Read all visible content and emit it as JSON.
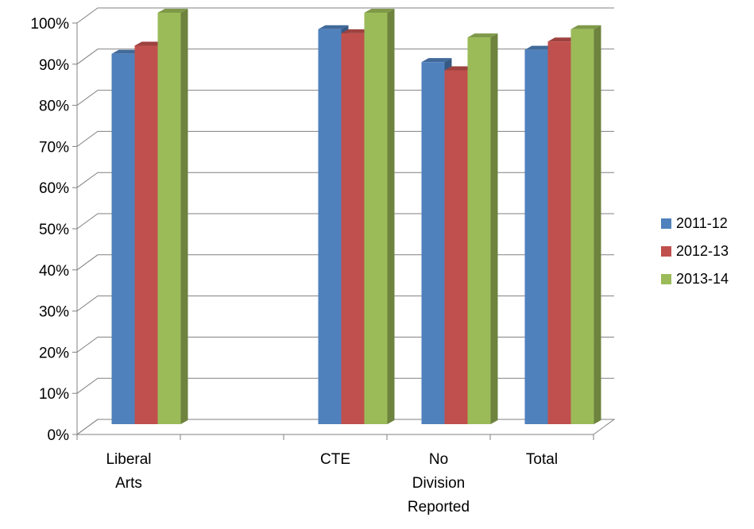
{
  "chart_data": {
    "type": "bar",
    "title": "",
    "xlabel": "",
    "ylabel": "",
    "ylim": [
      0,
      100
    ],
    "y_ticks": [
      0,
      10,
      20,
      30,
      40,
      50,
      60,
      70,
      80,
      90,
      100
    ],
    "y_tick_format": "{v}%",
    "grid": true,
    "legend_position": "right",
    "style": "3d-clustered-column",
    "categories": [
      {
        "lines": [
          "Liberal",
          "Arts"
        ]
      },
      {
        "lines": [
          ""
        ]
      },
      {
        "lines": [
          "CTE"
        ]
      },
      {
        "lines": [
          "No",
          "Division",
          "Reported"
        ]
      },
      {
        "lines": [
          "Total"
        ]
      }
    ],
    "series": [
      {
        "name": "2011-12",
        "color": "#4f81bd",
        "values": [
          90,
          null,
          96,
          88,
          91
        ]
      },
      {
        "name": "2012-13",
        "color": "#c0504d",
        "values": [
          92,
          null,
          95,
          86,
          93
        ]
      },
      {
        "name": "2013-14",
        "color": "#9bbb59",
        "values": [
          100,
          null,
          100,
          94,
          96
        ]
      }
    ]
  }
}
